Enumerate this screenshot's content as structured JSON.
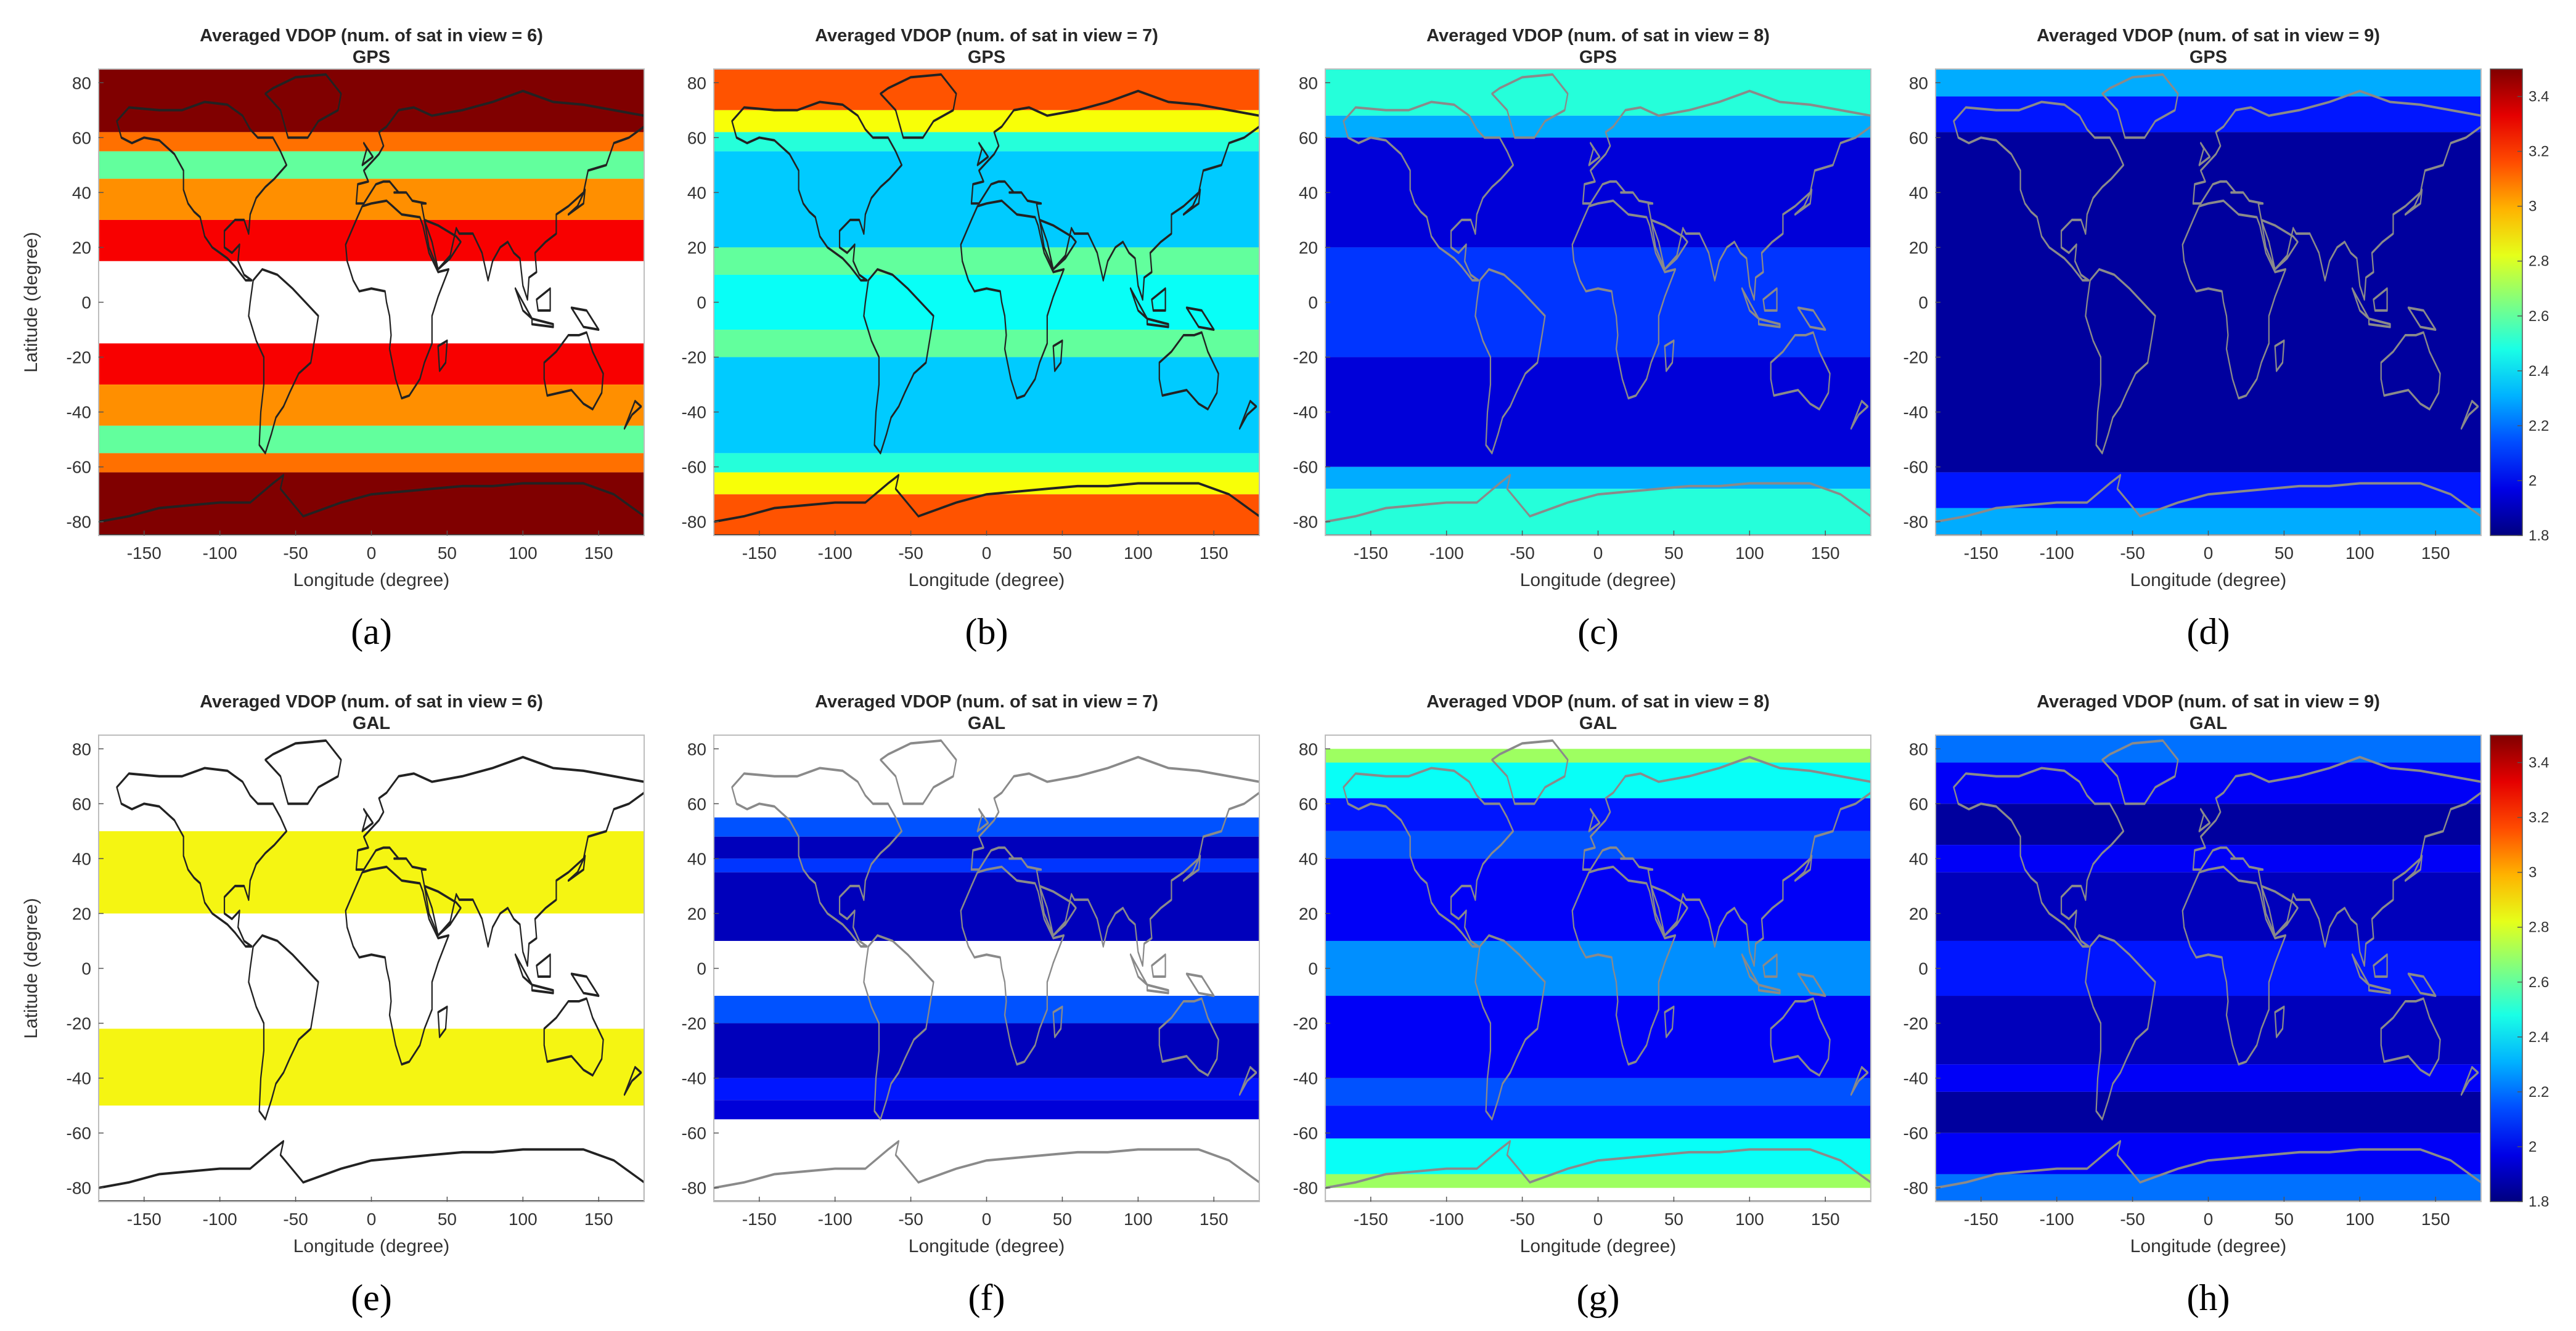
{
  "figure": {
    "colormap": "jet",
    "colors": {
      "coastline_dark": "#222222",
      "coastline_light": "#8a8a8a",
      "frame": "#bdbdbd",
      "galileo_band": "#f5f512"
    }
  },
  "chart_data": [
    {
      "id": "a",
      "type": "heatmap",
      "panel_label": "(a)",
      "title": "Averaged VDOP (num. of sat in view = 6)",
      "subtitle": "GPS",
      "xlabel": "Longitude (degree)",
      "ylabel": "Latitude (degree)",
      "xlim": [
        -180,
        180
      ],
      "ylim": [
        -85,
        85
      ],
      "xticks": [
        "-150",
        "-100",
        "-50",
        "0",
        "50",
        "100",
        "150"
      ],
      "yticks": [
        "80",
        "60",
        "40",
        "20",
        "0",
        "-20",
        "-40",
        "-60",
        "-80"
      ],
      "clim": [
        1.8,
        3.5
      ],
      "coastline": "black",
      "lat_bands": [
        {
          "lat": [
            62,
            85
          ],
          "vdop": 3.5
        },
        {
          "lat": [
            55,
            62
          ],
          "vdop": 3.1
        },
        {
          "lat": [
            45,
            55
          ],
          "vdop": 2.6
        },
        {
          "lat": [
            30,
            45
          ],
          "vdop": 3.05
        },
        {
          "lat": [
            15,
            30
          ],
          "vdop": 3.3
        },
        {
          "lat": [
            -15,
            15
          ],
          "vdop": null
        },
        {
          "lat": [
            -30,
            -15
          ],
          "vdop": 3.3
        },
        {
          "lat": [
            -45,
            -30
          ],
          "vdop": 3.05
        },
        {
          "lat": [
            -55,
            -45
          ],
          "vdop": 2.6
        },
        {
          "lat": [
            -62,
            -55
          ],
          "vdop": 3.1
        },
        {
          "lat": [
            -85,
            -62
          ],
          "vdop": 3.5
        }
      ]
    },
    {
      "id": "b",
      "type": "heatmap",
      "panel_label": "(b)",
      "title": "Averaged VDOP (num. of sat in view = 7)",
      "subtitle": "GPS",
      "xlabel": "Longitude (degree)",
      "ylabel": "",
      "xlim": [
        -180,
        180
      ],
      "ylim": [
        -85,
        85
      ],
      "xticks": [
        "-150",
        "-100",
        "-50",
        "0",
        "50",
        "100",
        "150"
      ],
      "yticks": [
        "80",
        "60",
        "40",
        "20",
        "0",
        "-20",
        "-40",
        "-60",
        "-80"
      ],
      "clim": [
        1.8,
        3.5
      ],
      "coastline": "black",
      "lat_bands": [
        {
          "lat": [
            70,
            85
          ],
          "vdop": 3.15
        },
        {
          "lat": [
            62,
            70
          ],
          "vdop": 2.85
        },
        {
          "lat": [
            55,
            62
          ],
          "vdop": 2.5
        },
        {
          "lat": [
            20,
            55
          ],
          "vdop": 2.35
        },
        {
          "lat": [
            10,
            20
          ],
          "vdop": 2.6
        },
        {
          "lat": [
            -10,
            10
          ],
          "vdop": 2.45
        },
        {
          "lat": [
            -20,
            -10
          ],
          "vdop": 2.6
        },
        {
          "lat": [
            -55,
            -20
          ],
          "vdop": 2.35
        },
        {
          "lat": [
            -62,
            -55
          ],
          "vdop": 2.5
        },
        {
          "lat": [
            -70,
            -62
          ],
          "vdop": 2.85
        },
        {
          "lat": [
            -85,
            -70
          ],
          "vdop": 3.15
        }
      ]
    },
    {
      "id": "c",
      "type": "heatmap",
      "panel_label": "(c)",
      "title": "Averaged VDOP (num. of sat in view = 8)",
      "subtitle": "GPS",
      "xlabel": "Longitude (degree)",
      "ylabel": "",
      "xlim": [
        -180,
        180
      ],
      "ylim": [
        -85,
        85
      ],
      "xticks": [
        "-150",
        "-100",
        "-50",
        "0",
        "50",
        "100",
        "150"
      ],
      "yticks": [
        "80",
        "60",
        "40",
        "20",
        "0",
        "-20",
        "-40",
        "-60",
        "-80"
      ],
      "clim": [
        1.8,
        3.5
      ],
      "coastline": "gray",
      "lat_bands": [
        {
          "lat": [
            68,
            85
          ],
          "vdop": 2.5
        },
        {
          "lat": [
            60,
            68
          ],
          "vdop": 2.3
        },
        {
          "lat": [
            20,
            60
          ],
          "vdop": 1.95
        },
        {
          "lat": [
            -20,
            20
          ],
          "vdop": 2.1
        },
        {
          "lat": [
            -60,
            -20
          ],
          "vdop": 1.95
        },
        {
          "lat": [
            -68,
            -60
          ],
          "vdop": 2.3
        },
        {
          "lat": [
            -85,
            -68
          ],
          "vdop": 2.5
        }
      ]
    },
    {
      "id": "d",
      "type": "heatmap",
      "panel_label": "(d)",
      "title": "Averaged VDOP (num. of sat in view = 9)",
      "subtitle": "GPS",
      "xlabel": "Longitude (degree)",
      "ylabel": "",
      "xlim": [
        -180,
        180
      ],
      "ylim": [
        -85,
        85
      ],
      "xticks": [
        "-150",
        "-100",
        "-50",
        "0",
        "50",
        "100",
        "150"
      ],
      "yticks": [
        "80",
        "60",
        "40",
        "20",
        "0",
        "-20",
        "-40",
        "-60",
        "-80"
      ],
      "clim": [
        1.8,
        3.5
      ],
      "coastline": "gray",
      "colorbar_ticks": [
        "3.4",
        "3.2",
        "3",
        "2.8",
        "2.6",
        "2.4",
        "2.2",
        "2",
        "1.8"
      ],
      "lat_bands": [
        {
          "lat": [
            75,
            85
          ],
          "vdop": 2.3
        },
        {
          "lat": [
            62,
            75
          ],
          "vdop": 2.05
        },
        {
          "lat": [
            -62,
            62
          ],
          "vdop": 1.85
        },
        {
          "lat": [
            -75,
            -62
          ],
          "vdop": 2.05
        },
        {
          "lat": [
            -85,
            -75
          ],
          "vdop": 2.3
        }
      ]
    },
    {
      "id": "e",
      "type": "heatmap",
      "panel_label": "(e)",
      "title": "Averaged VDOP (num. of sat in view = 6)",
      "subtitle": "GAL",
      "xlabel": "Longitude (degree)",
      "ylabel": "Latitude (degree)",
      "xlim": [
        -180,
        180
      ],
      "ylim": [
        -85,
        85
      ],
      "xticks": [
        "-150",
        "-100",
        "-50",
        "0",
        "50",
        "100",
        "150"
      ],
      "yticks": [
        "80",
        "60",
        "40",
        "20",
        "0",
        "-20",
        "-40",
        "-60",
        "-80"
      ],
      "clim": [
        1.8,
        3.5
      ],
      "coastline": "black",
      "lat_bands": [
        {
          "lat": [
            20,
            50
          ],
          "vdop": 3.0,
          "flat_color": "#f5f512"
        },
        {
          "lat": [
            -50,
            -22
          ],
          "vdop": 3.0,
          "flat_color": "#f5f512"
        }
      ]
    },
    {
      "id": "f",
      "type": "heatmap",
      "panel_label": "(f)",
      "title": "Averaged VDOP (num. of sat in view = 7)",
      "subtitle": "GAL",
      "xlabel": "Longitude (degree)",
      "ylabel": "",
      "xlim": [
        -180,
        180
      ],
      "ylim": [
        -85,
        85
      ],
      "xticks": [
        "-150",
        "-100",
        "-50",
        "0",
        "50",
        "100",
        "150"
      ],
      "yticks": [
        "80",
        "60",
        "40",
        "20",
        "0",
        "-20",
        "-40",
        "-60",
        "-80"
      ],
      "clim": [
        1.8,
        3.5
      ],
      "coastline": "gray",
      "lat_bands": [
        {
          "lat": [
            48,
            55
          ],
          "vdop": 2.15
        },
        {
          "lat": [
            40,
            48
          ],
          "vdop": 1.9
        },
        {
          "lat": [
            35,
            40
          ],
          "vdop": 2.1
        },
        {
          "lat": [
            10,
            35
          ],
          "vdop": 1.9
        },
        {
          "lat": [
            -20,
            -10
          ],
          "vdop": 2.15
        },
        {
          "lat": [
            -40,
            -20
          ],
          "vdop": 1.9
        },
        {
          "lat": [
            -48,
            -40
          ],
          "vdop": 2.05
        },
        {
          "lat": [
            -55,
            -48
          ],
          "vdop": 1.95
        }
      ]
    },
    {
      "id": "g",
      "type": "heatmap",
      "panel_label": "(g)",
      "title": "Averaged VDOP (num. of sat in view = 8)",
      "subtitle": "GAL",
      "xlabel": "Longitude (degree)",
      "ylabel": "",
      "xlim": [
        -180,
        180
      ],
      "ylim": [
        -85,
        85
      ],
      "xticks": [
        "-150",
        "-100",
        "-50",
        "0",
        "50",
        "100",
        "150"
      ],
      "yticks": [
        "80",
        "60",
        "40",
        "20",
        "0",
        "-20",
        "-40",
        "-60",
        "-80"
      ],
      "clim": [
        1.8,
        3.5
      ],
      "coastline": "gray",
      "lat_bands": [
        {
          "lat": [
            75,
            80
          ],
          "vdop": 2.7
        },
        {
          "lat": [
            62,
            75
          ],
          "vdop": 2.45
        },
        {
          "lat": [
            50,
            62
          ],
          "vdop": 2.05
        },
        {
          "lat": [
            40,
            50
          ],
          "vdop": 2.15
        },
        {
          "lat": [
            10,
            40
          ],
          "vdop": 2.0
        },
        {
          "lat": [
            -10,
            10
          ],
          "vdop": 2.25
        },
        {
          "lat": [
            -40,
            -10
          ],
          "vdop": 2.0
        },
        {
          "lat": [
            -50,
            -40
          ],
          "vdop": 2.15
        },
        {
          "lat": [
            -62,
            -50
          ],
          "vdop": 2.05
        },
        {
          "lat": [
            -75,
            -62
          ],
          "vdop": 2.45
        },
        {
          "lat": [
            -80,
            -75
          ],
          "vdop": 2.7
        }
      ]
    },
    {
      "id": "h",
      "type": "heatmap",
      "panel_label": "(h)",
      "title": "Averaged VDOP (num. of sat in view = 9)",
      "subtitle": "GAL",
      "xlabel": "Longitude (degree)",
      "ylabel": "",
      "xlim": [
        -180,
        180
      ],
      "ylim": [
        -85,
        85
      ],
      "xticks": [
        "-150",
        "-100",
        "-50",
        "0",
        "50",
        "100",
        "150"
      ],
      "yticks": [
        "80",
        "60",
        "40",
        "20",
        "0",
        "-20",
        "-40",
        "-60",
        "-80"
      ],
      "clim": [
        1.8,
        3.5
      ],
      "coastline": "gray",
      "colorbar_ticks": [
        "3.4",
        "3.2",
        "3",
        "2.8",
        "2.6",
        "2.4",
        "2.2",
        "2",
        "1.8"
      ],
      "lat_bands": [
        {
          "lat": [
            75,
            85
          ],
          "vdop": 2.2
        },
        {
          "lat": [
            60,
            75
          ],
          "vdop": 2.0
        },
        {
          "lat": [
            45,
            60
          ],
          "vdop": 1.85
        },
        {
          "lat": [
            35,
            45
          ],
          "vdop": 2.0
        },
        {
          "lat": [
            10,
            35
          ],
          "vdop": 1.9
        },
        {
          "lat": [
            -10,
            10
          ],
          "vdop": 2.05
        },
        {
          "lat": [
            -35,
            -10
          ],
          "vdop": 1.9
        },
        {
          "lat": [
            -45,
            -35
          ],
          "vdop": 2.0
        },
        {
          "lat": [
            -60,
            -45
          ],
          "vdop": 1.85
        },
        {
          "lat": [
            -75,
            -60
          ],
          "vdop": 2.0
        },
        {
          "lat": [
            -85,
            -75
          ],
          "vdop": 2.2
        }
      ]
    }
  ]
}
